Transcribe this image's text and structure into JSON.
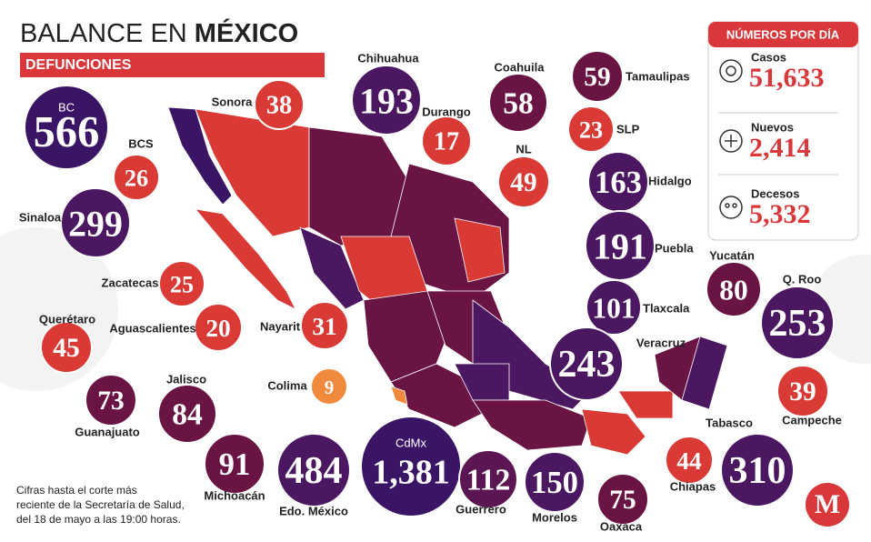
{
  "header": {
    "title_part1": "BALANCE EN ",
    "title_part2": "MÉXICO",
    "subtitle": "DEFUNCIONES"
  },
  "summary": {
    "title": "NÚMEROS POR DÍA",
    "items": [
      {
        "label": "Casos",
        "value": "51,633"
      },
      {
        "label": "Nuevos",
        "value": "2,414"
      },
      {
        "label": "Decesos",
        "value": "5,332"
      }
    ]
  },
  "states": [
    {
      "name": "BC",
      "value": "566",
      "color": "#3a1565"
    },
    {
      "name": "Sonora",
      "value": "38",
      "color": "#d93a35"
    },
    {
      "name": "Chihuahua",
      "value": "193",
      "color": "#4b1760"
    },
    {
      "name": "Coahuila",
      "value": "58",
      "color": "#6a1444"
    },
    {
      "name": "Tamaulipas",
      "value": "59",
      "color": "#6a1444"
    },
    {
      "name": "Durango",
      "value": "17",
      "color": "#d93a35"
    },
    {
      "name": "SLP",
      "value": "23",
      "color": "#d93a35"
    },
    {
      "name": "BCS",
      "value": "26",
      "color": "#d93a35"
    },
    {
      "name": "NL",
      "value": "49",
      "color": "#d93a35"
    },
    {
      "name": "Hidalgo",
      "value": "163",
      "color": "#4b1760"
    },
    {
      "name": "Sinaloa",
      "value": "299",
      "color": "#4b1760"
    },
    {
      "name": "Puebla",
      "value": "191",
      "color": "#4b1760"
    },
    {
      "name": "Zacatecas",
      "value": "25",
      "color": "#d93a35"
    },
    {
      "name": "Aguascalientes",
      "value": "20",
      "color": "#d93a35"
    },
    {
      "name": "Nayarit",
      "value": "31",
      "color": "#d93a35"
    },
    {
      "name": "Tlaxcala",
      "value": "101",
      "color": "#4b1760"
    },
    {
      "name": "Yucatán",
      "value": "80",
      "color": "#6a1444"
    },
    {
      "name": "Q. Roo",
      "value": "253",
      "color": "#4b1760"
    },
    {
      "name": "Querétaro",
      "value": "45",
      "color": "#d93a35"
    },
    {
      "name": "Veracruz",
      "value": "243",
      "color": "#4b1760"
    },
    {
      "name": "Guanajuato",
      "value": "73",
      "color": "#6a1444"
    },
    {
      "name": "Jalisco",
      "value": "84",
      "color": "#6a1444"
    },
    {
      "name": "Colima",
      "value": "9",
      "color": "#f08a3c"
    },
    {
      "name": "Campeche",
      "value": "39",
      "color": "#d93a35"
    },
    {
      "name": "Tabasco",
      "value": "310",
      "color": "#4b1760"
    },
    {
      "name": "Michoacán",
      "value": "91",
      "color": "#6a1444"
    },
    {
      "name": "Edo. México",
      "value": "484",
      "color": "#4b1760"
    },
    {
      "name": "CdMx",
      "value": "1,381",
      "color": "#3a1565"
    },
    {
      "name": "Guerrero",
      "value": "112",
      "color": "#5a1552"
    },
    {
      "name": "Morelos",
      "value": "150",
      "color": "#4b1760"
    },
    {
      "name": "Chiapas",
      "value": "44",
      "color": "#d93a35"
    },
    {
      "name": "Oaxaca",
      "value": "75",
      "color": "#6a1444"
    }
  ],
  "footnote": [
    "Cifras hasta el corte más",
    "reciente de la Secretaría de Salud,",
    "del 18 de mayo a las 19:00 horas."
  ],
  "logo": "M"
}
